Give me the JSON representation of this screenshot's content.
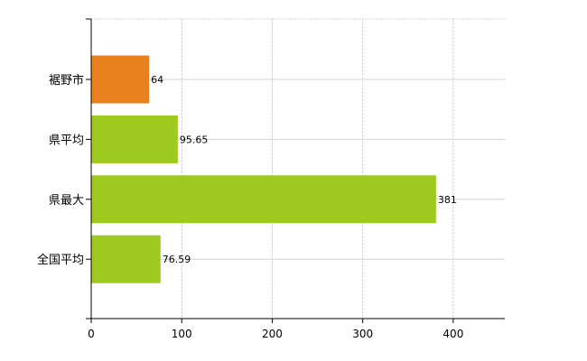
{
  "chart_data": {
    "type": "bar",
    "orientation": "horizontal",
    "categories": [
      "裾野市",
      "県平均",
      "県最大",
      "全国平均"
    ],
    "values": [
      64,
      95.65,
      381,
      76.59
    ],
    "data_labels": [
      "64",
      "95.65",
      "381",
      "76.59"
    ],
    "bar_colors": [
      "#e8801e",
      "#9ec91e",
      "#9ec91e",
      "#9ec91e"
    ],
    "xlim": [
      0,
      457
    ],
    "x_ticks": [
      0,
      100,
      200,
      300,
      400
    ],
    "x_tick_labels": [
      "0",
      "100",
      "200",
      "300",
      "400"
    ],
    "title": "",
    "xlabel": "",
    "ylabel": "",
    "grid": true,
    "legend": "none"
  }
}
